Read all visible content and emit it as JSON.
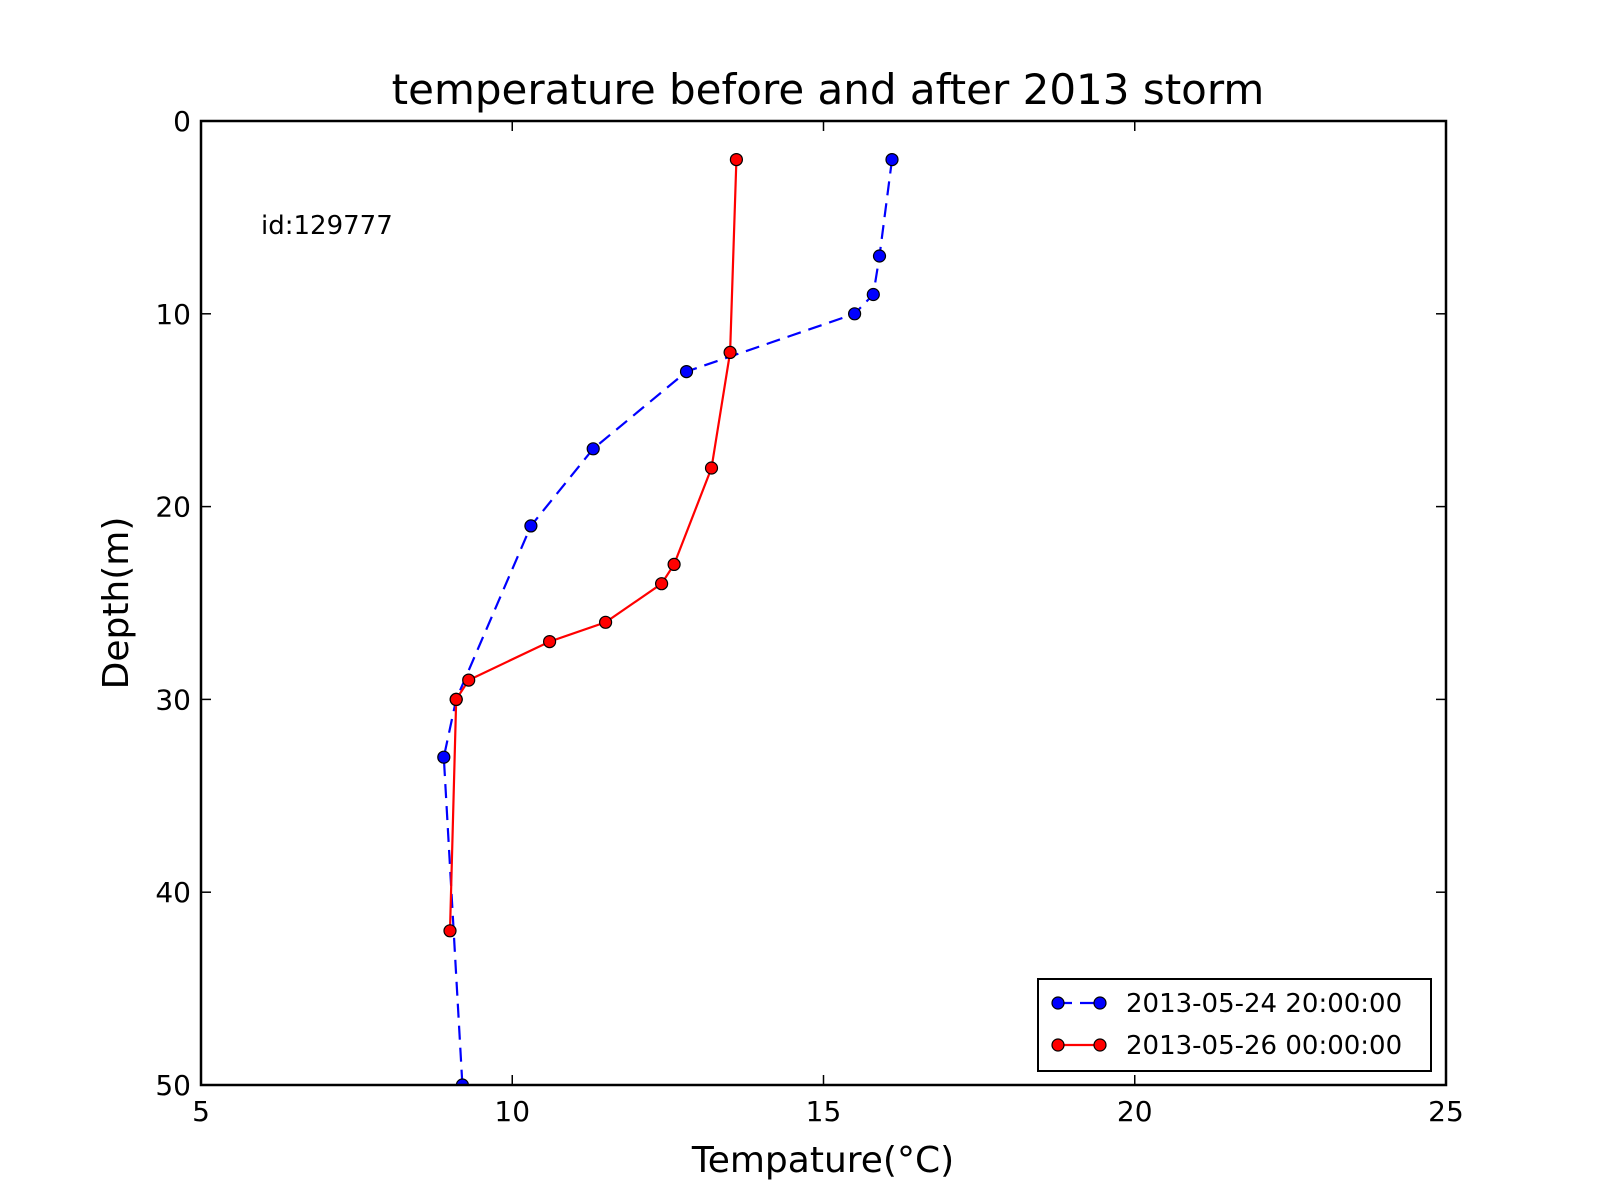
{
  "chart_data": {
    "type": "line",
    "title": "temperature before and after 2013 storm",
    "xlabel": "Tempature(°C)",
    "ylabel": "Depth(m)",
    "xlim": [
      5,
      25
    ],
    "ylim": [
      0,
      50
    ],
    "y_inverted": true,
    "xticks": [
      "5",
      "10",
      "15",
      "20",
      "25"
    ],
    "yticks": [
      "0",
      "10",
      "20",
      "30",
      "40",
      "50"
    ],
    "annotation": "id:129777",
    "grid": false,
    "legend_position": "lower-right",
    "series": [
      {
        "name": "2013-05-24 20:00:00",
        "color": "#0000ff",
        "line_style": "dashed",
        "marker": "circle",
        "points": [
          {
            "x": 16.1,
            "y": 2
          },
          {
            "x": 15.9,
            "y": 7
          },
          {
            "x": 15.8,
            "y": 9
          },
          {
            "x": 15.5,
            "y": 10
          },
          {
            "x": 12.8,
            "y": 13
          },
          {
            "x": 11.3,
            "y": 17
          },
          {
            "x": 10.3,
            "y": 21
          },
          {
            "x": 9.1,
            "y": 30
          },
          {
            "x": 8.9,
            "y": 33
          },
          {
            "x": 9.2,
            "y": 50
          }
        ]
      },
      {
        "name": "2013-05-26 00:00:00",
        "color": "#ff0000",
        "line_style": "solid",
        "marker": "circle",
        "points": [
          {
            "x": 13.6,
            "y": 2
          },
          {
            "x": 13.5,
            "y": 12
          },
          {
            "x": 13.2,
            "y": 18
          },
          {
            "x": 12.6,
            "y": 23
          },
          {
            "x": 12.4,
            "y": 24
          },
          {
            "x": 11.5,
            "y": 26
          },
          {
            "x": 10.6,
            "y": 27
          },
          {
            "x": 9.3,
            "y": 29
          },
          {
            "x": 9.1,
            "y": 30
          },
          {
            "x": 9.0,
            "y": 42
          }
        ]
      }
    ]
  }
}
